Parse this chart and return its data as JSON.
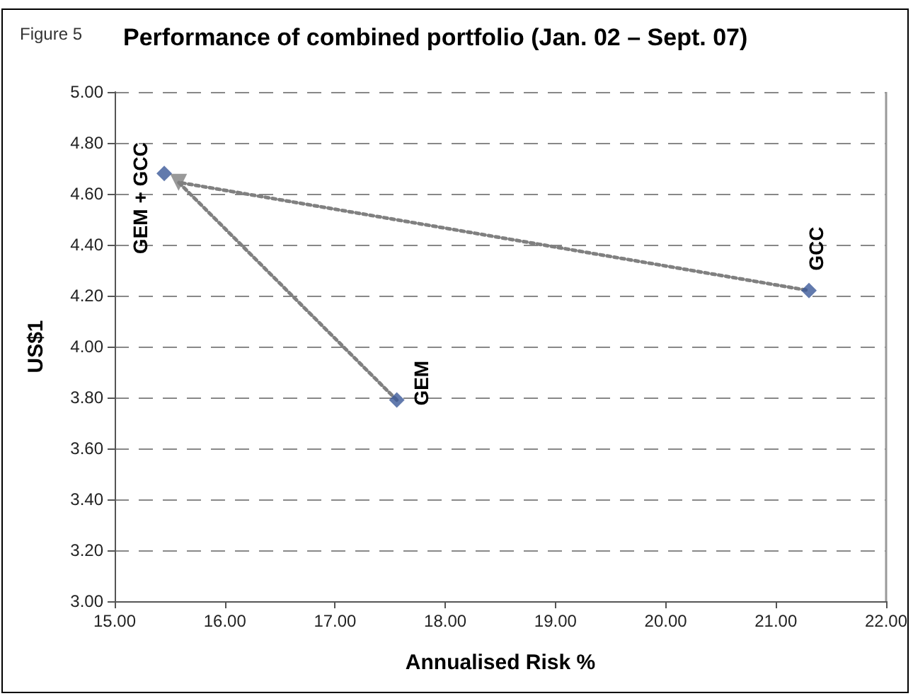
{
  "chart_data": {
    "type": "scatter",
    "title": "Performance of combined portfolio (Jan. 02 – Sept. 07)",
    "xlabel": "Annualised Risk %",
    "ylabel": "US$1",
    "annotations": [
      "Figure 5",
      {
        "text": "GEM + GCC",
        "x": 15.45,
        "y": 4.68
      },
      {
        "text": "GEM",
        "x": 17.56,
        "y": 3.79
      },
      {
        "text": "GCC",
        "x": 21.3,
        "y": 4.22
      }
    ],
    "series": [
      {
        "type": "line",
        "color": "#808080",
        "x": [
          17.56,
          15.58,
          21.3
        ],
        "values": [
          3.79,
          4.645,
          4.22
        ],
        "line_style": "dotted",
        "marker": "none"
      },
      {
        "color": "#808080",
        "x": [
          15.58
        ],
        "values": [
          4.645
        ],
        "marker": "triangle"
      },
      {
        "color": "#3b5998",
        "x": [
          15.45,
          17.56,
          21.3
        ],
        "values": [
          4.68,
          3.79,
          4.22
        ],
        "marker": "diamond"
      }
    ],
    "xlim": [
      15,
      22
    ],
    "ylim": [
      3,
      5
    ],
    "xticks": [
      {
        "value": 15,
        "label": "15.00"
      },
      {
        "value": 16,
        "label": "16.00"
      },
      {
        "value": 17,
        "label": "17.00"
      },
      {
        "value": 18,
        "label": "18.00"
      },
      {
        "value": 19,
        "label": "19.00"
      },
      {
        "value": 20,
        "label": "20.00"
      },
      {
        "value": 21,
        "label": "21.00"
      },
      {
        "value": 22,
        "label": "22.00"
      }
    ],
    "yticks": [
      {
        "value": 3,
        "label": "3.00"
      },
      {
        "value": 3.2,
        "label": "3.20"
      },
      {
        "value": 3.4,
        "label": "3.40"
      },
      {
        "value": 3.6,
        "label": "3.60"
      },
      {
        "value": 3.8,
        "label": "3.80"
      },
      {
        "value": 4,
        "label": "4.00"
      },
      {
        "value": 4.2,
        "label": "4.20"
      },
      {
        "value": 4.4,
        "label": "4.40"
      },
      {
        "value": 4.6,
        "label": "4.60"
      },
      {
        "value": 4.8,
        "label": "4.80"
      },
      {
        "value": 5,
        "label": "5.00"
      }
    ],
    "grid": "y"
  }
}
